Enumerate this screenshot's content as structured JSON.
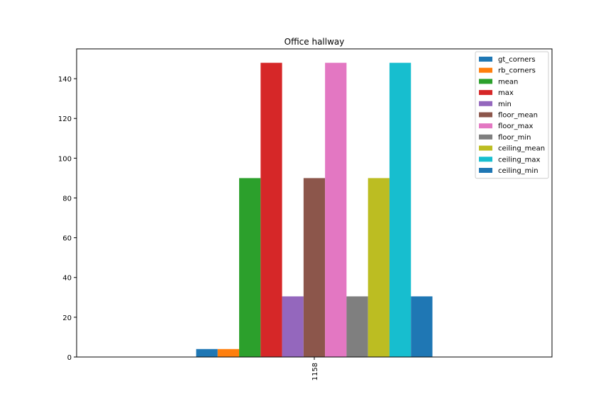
{
  "chart_data": {
    "type": "bar",
    "title": "Office hallway",
    "xlabel": "",
    "ylabel": "",
    "categories": [
      "1158"
    ],
    "ylim": [
      0,
      155
    ],
    "yticks": [
      0,
      20,
      40,
      60,
      80,
      100,
      120,
      140
    ],
    "legend_position": "top-right",
    "grid": false,
    "series": [
      {
        "name": "gt_corners",
        "values": [
          4
        ],
        "color": "#1f77b4"
      },
      {
        "name": "rb_corners",
        "values": [
          4
        ],
        "color": "#ff7f0e"
      },
      {
        "name": "mean",
        "values": [
          90
        ],
        "color": "#2ca02c"
      },
      {
        "name": "max",
        "values": [
          148
        ],
        "color": "#d62728"
      },
      {
        "name": "min",
        "values": [
          30.5
        ],
        "color": "#9467bd"
      },
      {
        "name": "floor_mean",
        "values": [
          90
        ],
        "color": "#8c564b"
      },
      {
        "name": "floor_max",
        "values": [
          148
        ],
        "color": "#e377c2"
      },
      {
        "name": "floor_min",
        "values": [
          30.5
        ],
        "color": "#7f7f7f"
      },
      {
        "name": "ceiling_mean",
        "values": [
          90
        ],
        "color": "#bcbd22"
      },
      {
        "name": "ceiling_max",
        "values": [
          148
        ],
        "color": "#17becf"
      },
      {
        "name": "ceiling_min",
        "values": [
          30.5
        ],
        "color": "#1f77b4"
      }
    ]
  }
}
